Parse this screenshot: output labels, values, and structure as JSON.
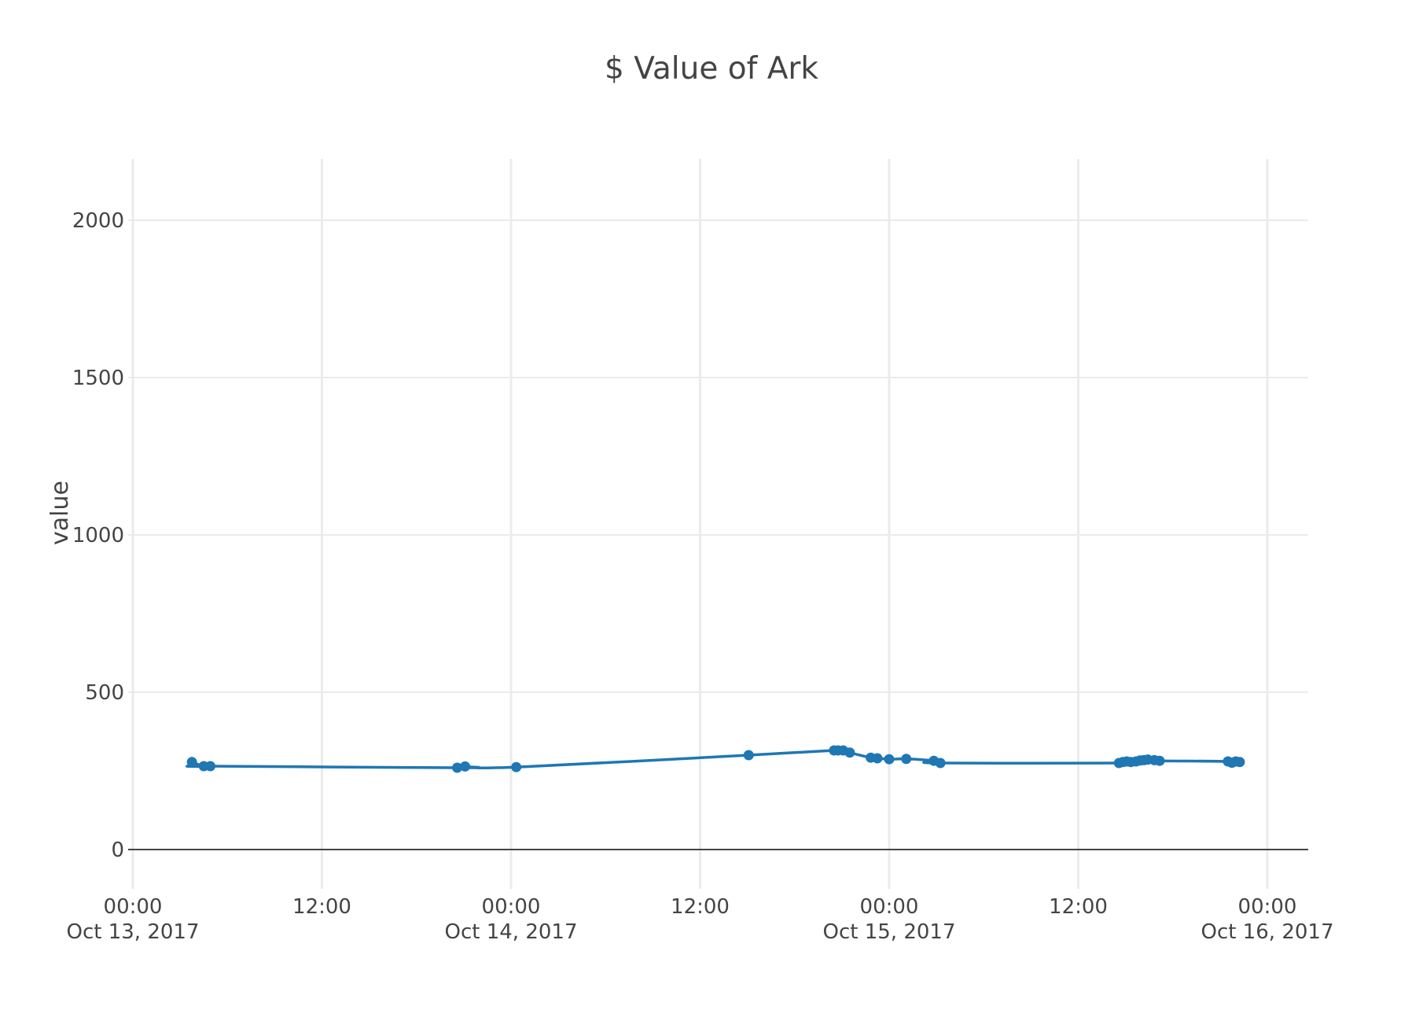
{
  "chart_data": {
    "type": "line",
    "mode": "lines+markers",
    "title": "$ Value of Ark",
    "xlabel": "",
    "ylabel": "value",
    "xlim": [
      "2017-10-13T00:00",
      "2017-10-16T00:00"
    ],
    "ylim": [
      0,
      2000
    ],
    "grid": true,
    "line_shape": "spline",
    "line_color": "#1f77b4",
    "y_ticks": [
      0,
      500,
      1000,
      1500,
      2000
    ],
    "x_ticks": [
      {
        "value": "2017-10-13T00:00",
        "time": "00:00",
        "date": "Oct 13, 2017"
      },
      {
        "value": "2017-10-13T12:00",
        "time": "12:00",
        "date": ""
      },
      {
        "value": "2017-10-14T00:00",
        "time": "00:00",
        "date": "Oct 14, 2017"
      },
      {
        "value": "2017-10-14T12:00",
        "time": "12:00",
        "date": ""
      },
      {
        "value": "2017-10-15T00:00",
        "time": "00:00",
        "date": "Oct 15, 2017"
      },
      {
        "value": "2017-10-15T12:00",
        "time": "12:00",
        "date": ""
      },
      {
        "value": "2017-10-16T00:00",
        "time": "00:00",
        "date": "Oct 16, 2017"
      }
    ],
    "series": [
      {
        "name": "",
        "x": [
          "2017-10-13T03:45",
          "2017-10-13T04:30",
          "2017-10-13T04:55",
          "2017-10-13T20:35",
          "2017-10-13T21:05",
          "2017-10-14T00:20",
          "2017-10-14T15:05",
          "2017-10-14T20:30",
          "2017-10-14T20:45",
          "2017-10-14T21:05",
          "2017-10-14T21:30",
          "2017-10-14T22:50",
          "2017-10-14T23:15",
          "2017-10-15T00:00",
          "2017-10-15T01:05",
          "2017-10-15T02:50",
          "2017-10-15T03:15",
          "2017-10-15T14:35",
          "2017-10-15T14:50",
          "2017-10-15T15:05",
          "2017-10-15T15:20",
          "2017-10-15T15:40",
          "2017-10-15T15:55",
          "2017-10-15T16:10",
          "2017-10-15T16:25",
          "2017-10-15T16:50",
          "2017-10-15T17:10",
          "2017-10-15T21:30",
          "2017-10-15T21:45",
          "2017-10-15T22:00",
          "2017-10-15T22:15"
        ],
        "y": [
          278,
          265,
          265,
          260,
          264,
          262,
          300,
          315,
          315,
          315,
          308,
          292,
          290,
          287,
          288,
          282,
          275,
          275,
          278,
          280,
          278,
          280,
          283,
          284,
          286,
          284,
          282,
          280,
          276,
          280,
          278
        ]
      }
    ]
  }
}
